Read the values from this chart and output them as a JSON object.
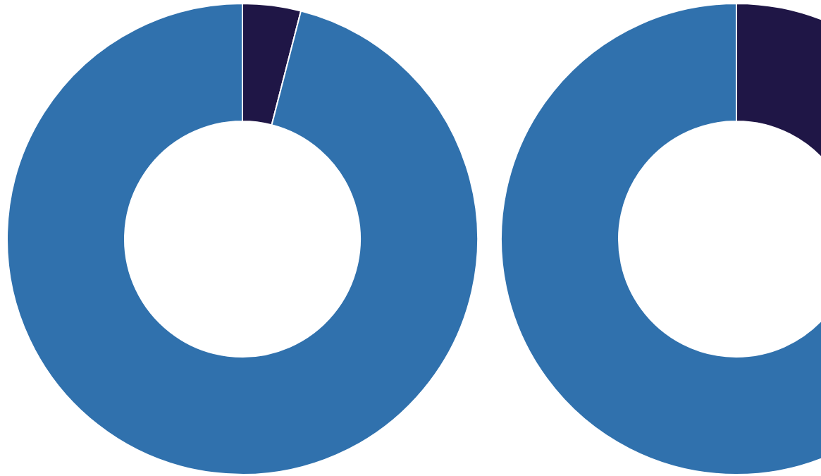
{
  "chart_data": [
    {
      "type": "donut",
      "categories": [
        null,
        null
      ],
      "values": [
        4,
        96
      ],
      "colors": [
        "#1f1646",
        "#3071ad"
      ]
    },
    {
      "type": "donut",
      "categories": [
        null,
        null
      ],
      "values": [
        15,
        85
      ],
      "colors": [
        "#1f1646",
        "#3071ad"
      ]
    }
  ]
}
